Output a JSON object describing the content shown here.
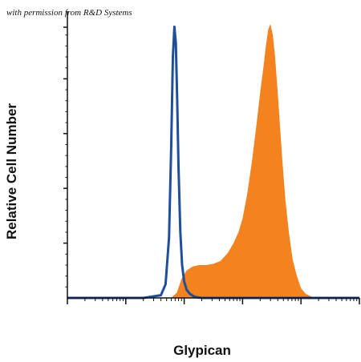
{
  "watermark": "with permission from R&D Systems",
  "chart_data": {
    "type": "area",
    "title": "",
    "xlabel": "Glypican",
    "ylabel": "Relative Cell Number",
    "xscale": "log",
    "xlim": [
      1,
      100000
    ],
    "ylim": [
      0,
      1
    ],
    "grid": false,
    "legend": "none",
    "tick_labels_shown": false,
    "series": [
      {
        "style": "filled",
        "color": "#F4831F",
        "x": [
          60,
          75,
          90,
          110,
          140,
          180,
          240,
          320,
          420,
          560,
          700,
          850,
          1000,
          1200,
          1450,
          1700,
          2000,
          2300,
          2500,
          2750,
          3000,
          3300,
          3600,
          4000,
          4400,
          4800,
          5400,
          6200,
          7200,
          8500,
          10000,
          12000,
          15000,
          20000
        ],
        "y": [
          0,
          0.02,
          0.07,
          0.1,
          0.115,
          0.12,
          0.12,
          0.125,
          0.135,
          0.165,
          0.2,
          0.24,
          0.29,
          0.38,
          0.5,
          0.62,
          0.75,
          0.85,
          0.92,
          0.98,
          1.0,
          0.96,
          0.88,
          0.75,
          0.62,
          0.5,
          0.36,
          0.24,
          0.14,
          0.08,
          0.035,
          0.015,
          0.005,
          0
        ]
      },
      {
        "style": "outline",
        "color": "#1F4E9B",
        "x": [
          1,
          20,
          40,
          48,
          55,
          60,
          64,
          68,
          72,
          76,
          80,
          86,
          92,
          100,
          110,
          125,
          145,
          170,
          200,
          240,
          300,
          100000
        ],
        "y": [
          0,
          0,
          0.01,
          0.05,
          0.22,
          0.55,
          0.88,
          0.99,
          0.93,
          0.72,
          0.48,
          0.24,
          0.12,
          0.06,
          0.03,
          0.015,
          0.006,
          0.002,
          0,
          0,
          0,
          0
        ]
      }
    ]
  }
}
